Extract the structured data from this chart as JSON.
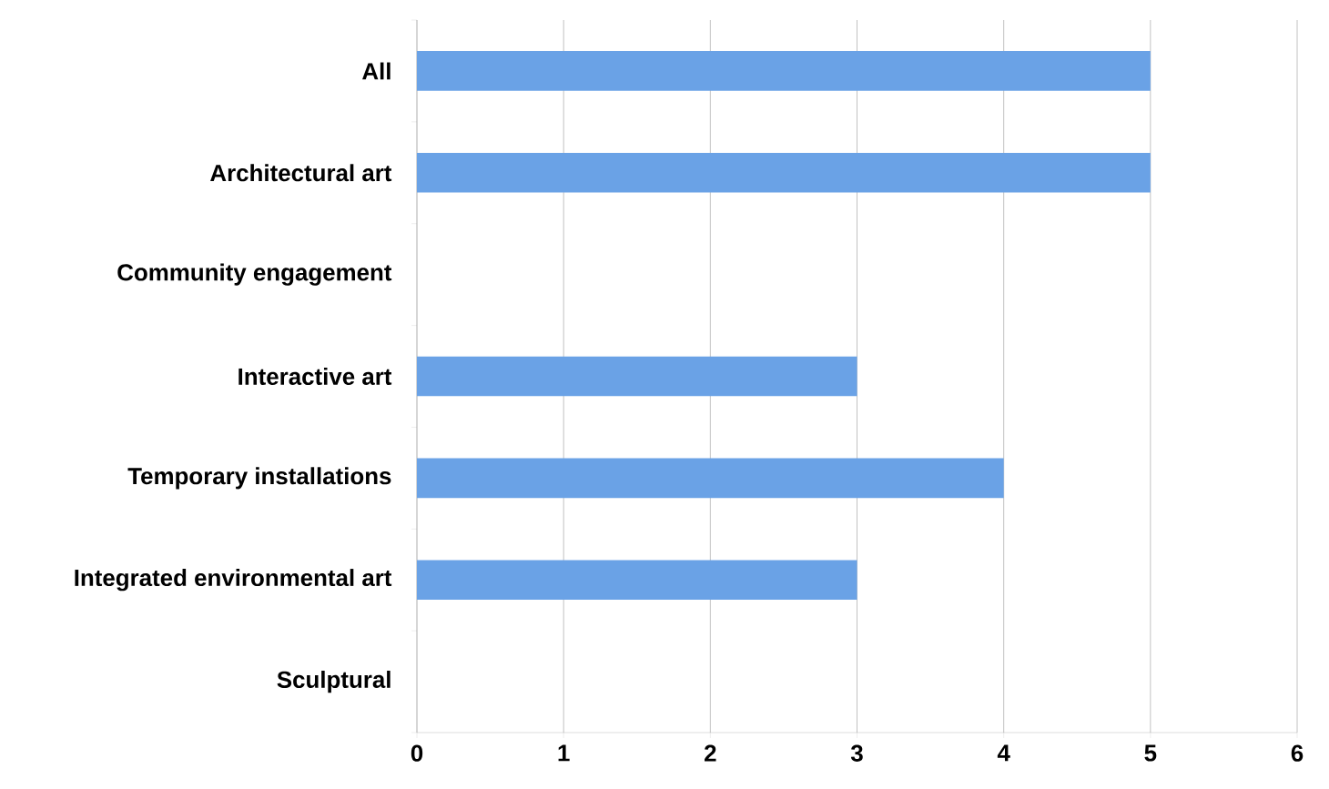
{
  "chart_data": {
    "type": "bar",
    "orientation": "horizontal",
    "categories": [
      "All",
      "Architectural art",
      "Community engagement",
      "Interactive art",
      "Temporary installations",
      "Integrated environmental art",
      "Sculptural"
    ],
    "values": [
      5,
      5,
      0,
      3,
      4,
      3,
      0
    ],
    "color": "#6aa2e6",
    "xlim": [
      0,
      6
    ],
    "xticks": [
      0,
      1,
      2,
      3,
      4,
      5,
      6
    ],
    "grid": "x"
  }
}
